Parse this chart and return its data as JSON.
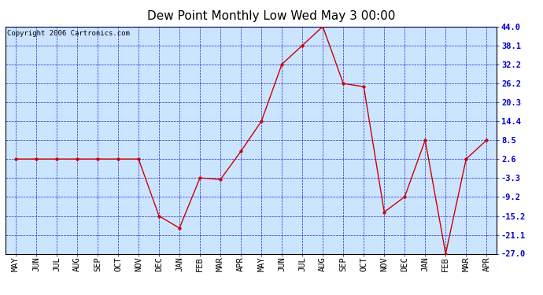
{
  "title": "Dew Point Monthly Low Wed May 3 00:00",
  "copyright": "Copyright 2006 Cartronics.com",
  "x_labels": [
    "MAY",
    "JUN",
    "JUL",
    "AUG",
    "SEP",
    "OCT",
    "NOV",
    "DEC",
    "JAN",
    "FEB",
    "MAR",
    "APR",
    "MAY",
    "JUN",
    "JUL",
    "AUG",
    "SEP",
    "OCT",
    "NOV",
    "DEC",
    "JAN",
    "FEB",
    "MAR",
    "APR"
  ],
  "y_values": [
    2.6,
    2.6,
    2.6,
    2.6,
    2.6,
    2.6,
    2.6,
    -15.2,
    -19.0,
    -3.3,
    -3.8,
    5.0,
    14.4,
    32.2,
    38.1,
    44.0,
    26.2,
    25.2,
    -14.0,
    -9.2,
    8.5,
    -27.0,
    2.6,
    8.5
  ],
  "y_ticks": [
    44.0,
    38.1,
    32.2,
    26.2,
    20.3,
    14.4,
    8.5,
    2.6,
    -3.3,
    -9.2,
    -15.2,
    -21.1,
    -27.0
  ],
  "line_color": "#cc0000",
  "marker_color": "#cc0000",
  "bg_color": "#cce5ff",
  "grid_color": "#0000cc",
  "border_color": "#000000",
  "title_fontsize": 11,
  "copyright_fontsize": 6.5,
  "tick_fontsize": 7.5,
  "y_tick_color": "#0000cc",
  "x_tick_color": "#000000",
  "ylim_min": -27.0,
  "ylim_max": 44.0
}
